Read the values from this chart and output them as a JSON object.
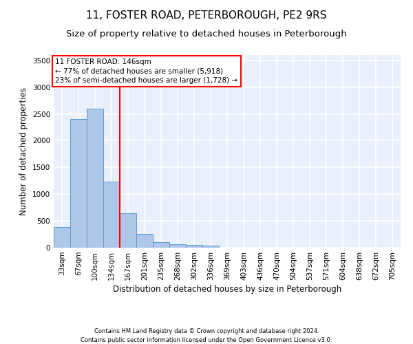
{
  "title1": "11, FOSTER ROAD, PETERBOROUGH, PE2 9RS",
  "title2": "Size of property relative to detached houses in Peterborough",
  "xlabel": "Distribution of detached houses by size in Peterborough",
  "ylabel": "Number of detached properties",
  "footnote1": "Contains HM Land Registry data © Crown copyright and database right 2024.",
  "footnote2": "Contains public sector information licensed under the Open Government Licence v3.0.",
  "categories": [
    "33sqm",
    "67sqm",
    "100sqm",
    "134sqm",
    "167sqm",
    "201sqm",
    "235sqm",
    "268sqm",
    "302sqm",
    "336sqm",
    "369sqm",
    "403sqm",
    "436sqm",
    "470sqm",
    "504sqm",
    "537sqm",
    "571sqm",
    "604sqm",
    "638sqm",
    "672sqm",
    "705sqm"
  ],
  "values": [
    390,
    2400,
    2600,
    1230,
    640,
    260,
    100,
    60,
    55,
    45,
    0,
    0,
    0,
    0,
    0,
    0,
    0,
    0,
    0,
    0,
    0
  ],
  "bar_color": "#aec6e8",
  "bar_edge_color": "#5b9bd5",
  "vline_x": 3.5,
  "vline_color": "red",
  "annotation_text": "11 FOSTER ROAD: 146sqm\n← 77% of detached houses are smaller (5,918)\n23% of semi-detached houses are larger (1,728) →",
  "annotation_box_color": "white",
  "annotation_box_edge_color": "red",
  "ylim": [
    0,
    3600
  ],
  "yticks": [
    0,
    500,
    1000,
    1500,
    2000,
    2500,
    3000,
    3500
  ],
  "bg_color": "#eaf0fb",
  "grid_color": "white",
  "title1_fontsize": 11,
  "title2_fontsize": 9.5,
  "axis_label_fontsize": 8.5,
  "tick_fontsize": 7.5,
  "footnote_fontsize": 6.0
}
